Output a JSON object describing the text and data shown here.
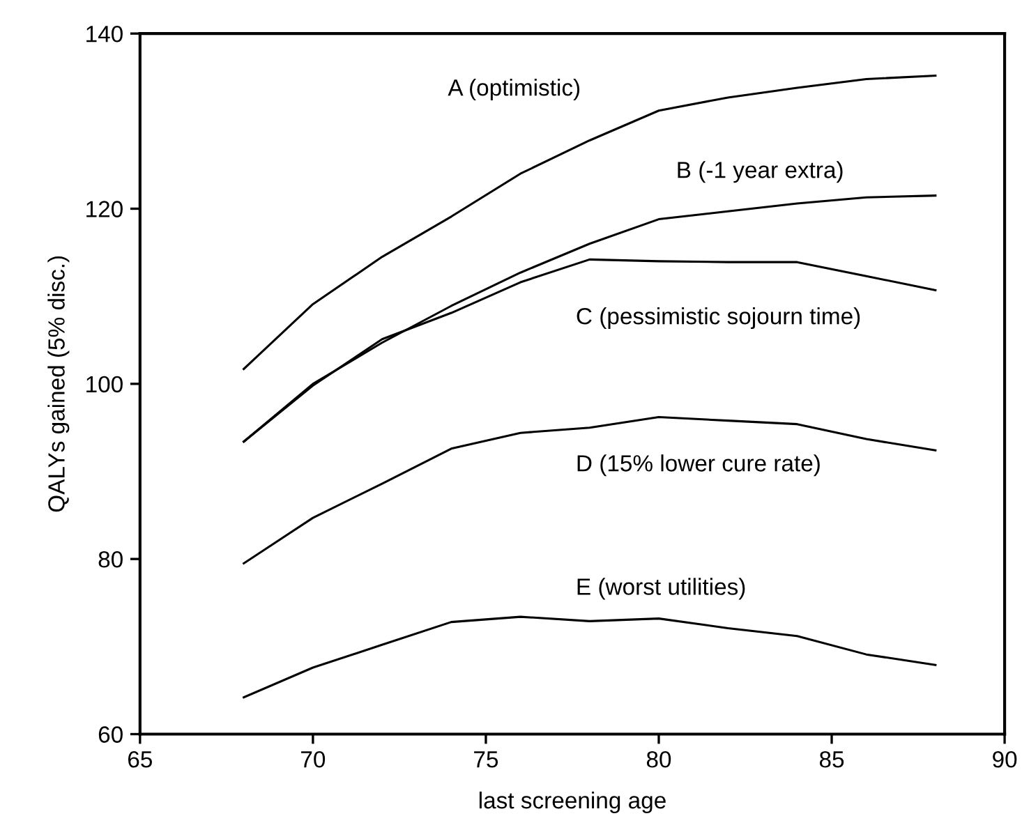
{
  "chart_data": {
    "type": "line",
    "xlabel": "last screening age",
    "ylabel": "QALYs gained (5% disc.)",
    "x": [
      68,
      70,
      72,
      74,
      76,
      78,
      80,
      82,
      84,
      86,
      88
    ],
    "series": [
      {
        "name": "A (optimistic)",
        "color": "#000000",
        "values": [
          101.7,
          109.1,
          114.5,
          119.1,
          124.0,
          127.8,
          131.2,
          132.7,
          133.8,
          134.8,
          135.2
        ]
      },
      {
        "name": "B (-1 year extra)",
        "color": "#000000",
        "values": [
          93.4,
          100.0,
          104.7,
          108.9,
          112.7,
          116.0,
          118.8,
          119.7,
          120.6,
          121.3,
          121.5
        ]
      },
      {
        "name": "C (pessimistic sojourn time)",
        "color": "#000000",
        "values": [
          93.4,
          99.8,
          105.1,
          108.1,
          111.6,
          114.2,
          114.0,
          113.9,
          113.9,
          112.3,
          110.7
        ]
      },
      {
        "name": "D (15% lower cure rate)",
        "color": "#000000",
        "values": [
          79.5,
          84.7,
          88.6,
          92.6,
          94.4,
          95.0,
          96.2,
          95.8,
          95.4,
          93.7,
          92.4
        ]
      },
      {
        "name": "E (worst utilities)",
        "color": "#000000",
        "values": [
          64.2,
          67.6,
          70.2,
          72.8,
          73.4,
          72.9,
          73.2,
          72.1,
          71.2,
          69.1,
          67.9
        ]
      }
    ],
    "xlim": [
      65,
      90
    ],
    "xticks": [
      65,
      70,
      75,
      80,
      85,
      90
    ],
    "ylim": [
      60,
      140
    ],
    "yticks": [
      60,
      80,
      100,
      120,
      140
    ],
    "grid": false,
    "legend": false,
    "marker": "none",
    "line_style": "solid"
  }
}
